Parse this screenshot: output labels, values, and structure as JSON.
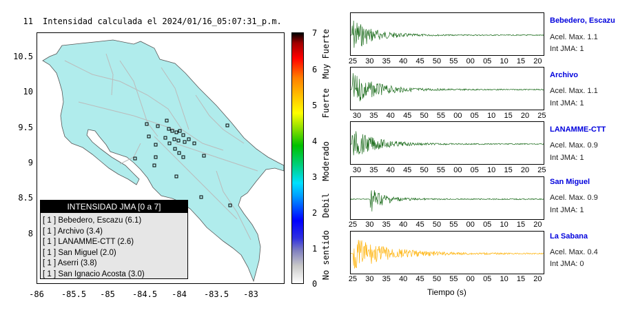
{
  "map": {
    "title": "Intensidad calculada el 2024/01/16_05:07:31_p.m.",
    "y_ticks": [
      "11",
      "10.5",
      "10",
      "9.5",
      "9",
      "8.5",
      "8"
    ],
    "x_ticks": [
      "-86",
      "-85.5",
      "-85",
      "-84.5",
      "-84",
      "-83.5",
      "-83"
    ],
    "land_color": "#b0ecec",
    "sea_color": "#ffffff"
  },
  "legend": {
    "title": "INTENSIDAD JMA [0 a 7]",
    "items": [
      "[ 1 ]  Bebedero, Escazu (6.1)",
      "[ 1 ]  Archivo (3.4)",
      "[ 1 ]  LANAMME-CTT (2.6)",
      "[ 1 ]  San Miguel (2.0)",
      "[ 1 ]  Aserri (3.8)",
      "[ 1 ]  San Ignacio Acosta (3.0)"
    ]
  },
  "colorbar": {
    "ticks": [
      "7",
      "6",
      "5",
      "4",
      "3",
      "2",
      "1",
      "0"
    ],
    "labels": [
      "Muy Fuerte",
      "Fuerte",
      "Moderado",
      "Debil",
      "No sentido"
    ]
  },
  "stations": [
    {
      "name": "Bebedero, Escazu",
      "accel": "Acel. Max. 1.1",
      "jma": "Int JMA: 1",
      "color": "#1a6b1a",
      "ticks": [
        "25",
        "30",
        "35",
        "40",
        "45",
        "50",
        "55",
        "00",
        "05",
        "10",
        "15",
        "20"
      ]
    },
    {
      "name": "Archivo",
      "accel": "Acel. Max. 1.1",
      "jma": "Int JMA: 1",
      "color": "#1a6b1a",
      "ticks": [
        "30",
        "35",
        "40",
        "45",
        "50",
        "55",
        "00",
        "05",
        "10",
        "15",
        "20",
        "25"
      ]
    },
    {
      "name": "LANAMME-CTT",
      "accel": "Acel. Max. 0.9",
      "jma": "Int JMA: 1",
      "color": "#1a6b1a",
      "ticks": [
        "30",
        "35",
        "40",
        "45",
        "50",
        "55",
        "00",
        "05",
        "10",
        "15",
        "20",
        "25"
      ]
    },
    {
      "name": "San Miguel",
      "accel": "Acel. Max. 0.9",
      "jma": "Int JMA: 1",
      "color": "#1a6b1a",
      "ticks": [
        "25",
        "30",
        "35",
        "40",
        "45",
        "50",
        "55",
        "00",
        "05",
        "10",
        "15",
        "20"
      ]
    },
    {
      "name": "La Sabana",
      "accel": "Acel. Max. 0.4",
      "jma": "Int JMA: 0",
      "color": "#ffb000",
      "ticks": [
        "25",
        "30",
        "35",
        "40",
        "45",
        "50",
        "55",
        "00",
        "05",
        "10",
        "15",
        "20"
      ]
    }
  ],
  "time_axis_label": "Tiempo (s)"
}
